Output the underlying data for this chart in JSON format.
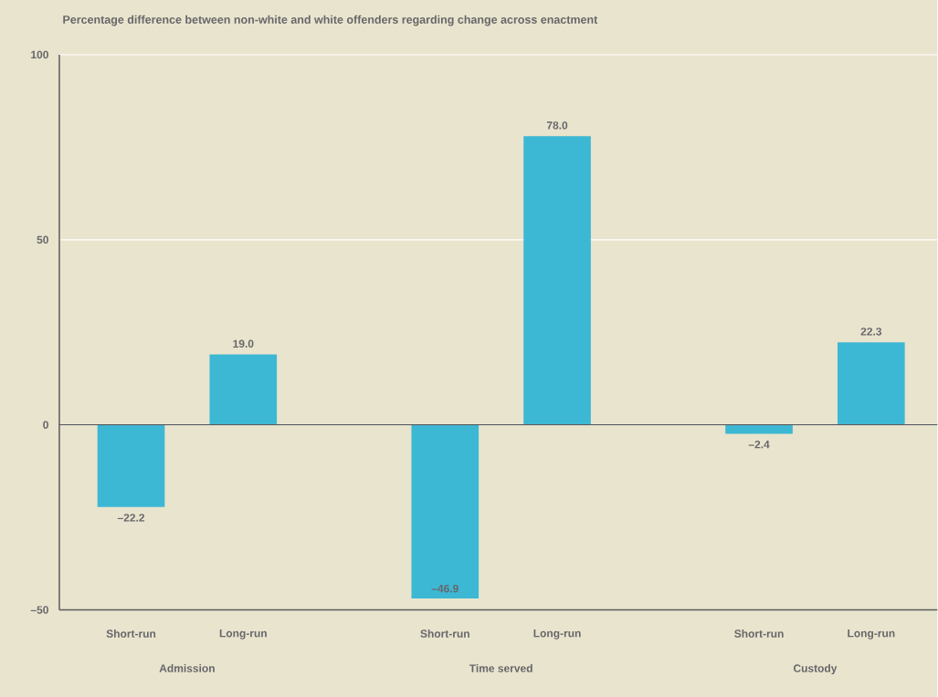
{
  "chart_data": {
    "type": "bar",
    "title": "Percentage difference between non-white and white offenders regarding change across enactment",
    "categories": [
      "Short-run",
      "Long-run",
      "Short-run",
      "Long-run",
      "Short-run",
      "Long-run"
    ],
    "values": [
      -22.2,
      19.0,
      -46.9,
      78.0,
      -2.4,
      22.3
    ],
    "value_labels": [
      "–22.2",
      "19.0",
      "–46.9",
      "78.0",
      "–2.4",
      "22.3"
    ],
    "color": "#3db8d4",
    "ylim": [
      -50,
      100
    ],
    "yticks": [
      {
        "value": -50,
        "label": "–50"
      },
      0,
      50,
      100
    ],
    "grid": "y",
    "annotations": [
      "Admission",
      "Time served",
      "Custody"
    ]
  }
}
